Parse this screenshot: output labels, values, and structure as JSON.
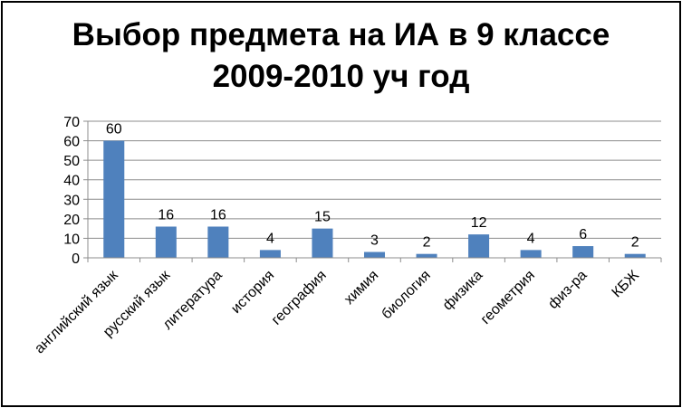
{
  "chart_data": {
    "type": "bar",
    "title": [
      "Выбор предмета на ИА в 9 классе",
      "2009-2010 уч год"
    ],
    "xlabel": "",
    "ylabel": "",
    "categories": [
      "английский язык",
      "русский язык",
      "литература",
      "история",
      "география",
      "химия",
      "биология",
      "физика",
      "геометрия",
      "физ-ра",
      "КБЖ"
    ],
    "values": [
      60,
      16,
      16,
      4,
      15,
      3,
      2,
      12,
      4,
      6,
      2
    ],
    "data_labels": [
      "60",
      "16",
      "16",
      "4",
      "15",
      "3",
      "2",
      "12",
      "4",
      "6",
      "2"
    ],
    "ylim": [
      0,
      70
    ],
    "yticks": [
      "0",
      "10",
      "20",
      "30",
      "40",
      "50",
      "60",
      "70"
    ],
    "grid": true,
    "legend": "none",
    "colors": {
      "bar": "#4F81BD",
      "grid": "#8C8C8C",
      "axis": "#8C8C8C"
    }
  }
}
